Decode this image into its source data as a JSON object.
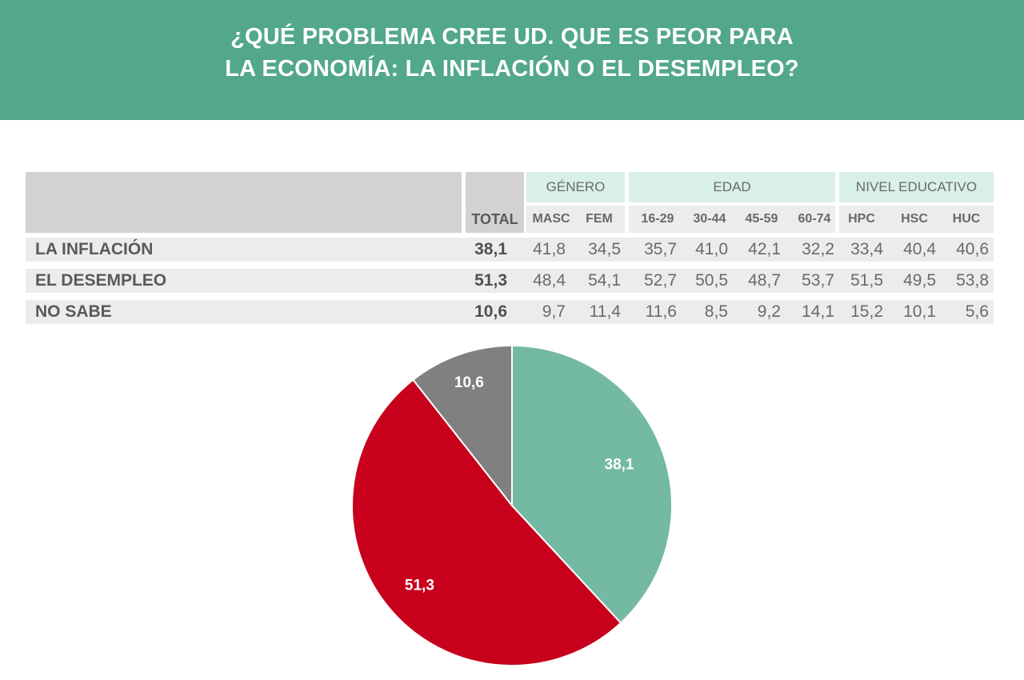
{
  "header": {
    "line1": "¿QUÉ PROBLEMA CREE UD. QUE ES PEOR PARA",
    "line2": "LA ECONOMÍA: LA INFLACIÓN O EL DESEMPLEO?"
  },
  "table": {
    "groups": [
      "GÉNERO",
      "EDAD",
      "NIVEL EDUCATIVO"
    ],
    "total_label": "TOTAL",
    "columns": [
      "MASC",
      "FEM",
      "16-29",
      "30-44",
      "45-59",
      "60-74",
      "HPC",
      "HSC",
      "HUC"
    ],
    "rows": [
      {
        "label": "LA INFLACIÓN",
        "total": "38,1",
        "values": [
          "41,8",
          "34,5",
          "35,7",
          "41,0",
          "42,1",
          "32,2",
          "33,4",
          "40,4",
          "40,6"
        ]
      },
      {
        "label": "EL DESEMPLEO",
        "total": "51,3",
        "values": [
          "48,4",
          "54,1",
          "52,7",
          "50,5",
          "48,7",
          "53,7",
          "51,5",
          "49,5",
          "53,8"
        ]
      },
      {
        "label": "NO SABE",
        "total": "10,6",
        "values": [
          "9,7",
          "11,4",
          "11,6",
          "8,5",
          "9,2",
          "14,1",
          "15,2",
          "10,1",
          "5,6"
        ]
      }
    ]
  },
  "chart_data": {
    "type": "pie",
    "title": "",
    "slices": [
      {
        "category": "LA INFLACIÓN",
        "value": 38.1,
        "label": "38,1",
        "color": "#74b9a3"
      },
      {
        "category": "EL DESEMPLEO",
        "value": 51.3,
        "label": "51,3",
        "color": "#c8001c"
      },
      {
        "category": "NO SABE",
        "value": 10.6,
        "label": "10,6",
        "color": "#808080"
      }
    ],
    "start_angle_deg": 0,
    "direction": "clockwise"
  }
}
